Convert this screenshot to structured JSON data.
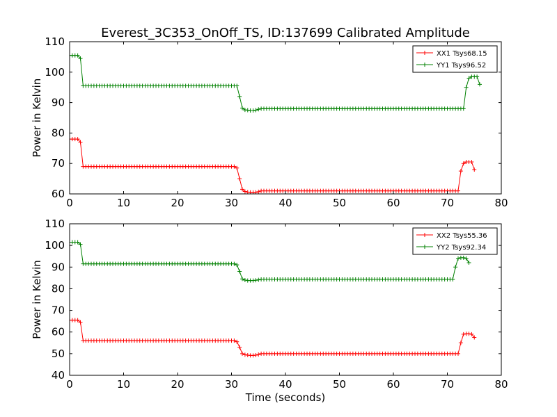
{
  "figure": {
    "title": "Everest_3C353_OnOff_TS, ID:137699 Calibrated Amplitude"
  },
  "chart_data": [
    {
      "type": "line",
      "title": "Everest_3C353_OnOff_TS, ID:137699 Calibrated Amplitude",
      "xlabel": "",
      "ylabel": "Power in Kelvin",
      "xlim": [
        0,
        80
      ],
      "ylim": [
        60,
        110
      ],
      "xticks": [
        0,
        10,
        20,
        30,
        40,
        50,
        60,
        70,
        80
      ],
      "yticks": [
        60,
        70,
        80,
        90,
        100,
        110
      ],
      "grid": false,
      "legend_position": "upper right",
      "series": [
        {
          "name": "XX1 Tsys68.15",
          "color": "#ff0000",
          "marker": "+",
          "x_start": 0,
          "x_step": 0.5,
          "values": [
            78,
            78,
            78,
            78,
            77,
            69,
            69,
            69,
            69,
            69,
            69,
            69,
            69,
            69,
            69,
            69,
            69,
            69,
            69,
            69,
            69,
            69,
            69,
            69,
            69,
            69,
            69,
            69,
            69,
            69,
            69,
            69,
            69,
            69,
            69,
            69,
            69,
            69,
            69,
            69,
            69,
            69,
            69,
            69,
            69,
            69,
            69,
            69,
            69,
            69,
            69,
            69,
            69,
            69,
            69,
            69,
            69,
            69,
            69,
            69,
            69,
            69,
            68.5,
            65,
            61.5,
            60.8,
            60.6,
            60.5,
            60.5,
            60.5,
            60.7,
            61,
            61,
            61,
            61,
            61,
            61,
            61,
            61,
            61,
            61,
            61,
            61,
            61,
            61,
            61,
            61,
            61,
            61,
            61,
            61,
            61,
            61,
            61,
            61,
            61,
            61,
            61,
            61,
            61,
            61,
            61,
            61,
            61,
            61,
            61,
            61,
            61,
            61,
            61,
            61,
            61,
            61,
            61,
            61,
            61,
            61,
            61,
            61,
            61,
            61,
            61,
            61,
            61,
            61,
            61,
            61,
            61,
            61,
            61,
            61,
            61,
            61,
            61,
            61,
            61,
            61,
            61,
            61,
            61,
            61,
            61,
            61,
            61,
            61,
            67.5,
            70,
            70.5,
            70.5,
            70.5,
            68
          ]
        },
        {
          "name": "YY1 Tsys96.52",
          "color": "#008000",
          "marker": "+",
          "x_start": 0,
          "x_step": 0.5,
          "values": [
            105.5,
            105.5,
            105.5,
            105.5,
            104.5,
            95.5,
            95.5,
            95.5,
            95.5,
            95.5,
            95.5,
            95.5,
            95.5,
            95.5,
            95.5,
            95.5,
            95.5,
            95.5,
            95.5,
            95.5,
            95.5,
            95.5,
            95.5,
            95.5,
            95.5,
            95.5,
            95.5,
            95.5,
            95.5,
            95.5,
            95.5,
            95.5,
            95.5,
            95.5,
            95.5,
            95.5,
            95.5,
            95.5,
            95.5,
            95.5,
            95.5,
            95.5,
            95.5,
            95.5,
            95.5,
            95.5,
            95.5,
            95.5,
            95.5,
            95.5,
            95.5,
            95.5,
            95.5,
            95.5,
            95.5,
            95.5,
            95.5,
            95.5,
            95.5,
            95.5,
            95.5,
            95.5,
            95.5,
            92,
            88.2,
            87.6,
            87.5,
            87.4,
            87.4,
            87.5,
            87.8,
            88,
            88,
            88,
            88,
            88,
            88,
            88,
            88,
            88,
            88,
            88,
            88,
            88,
            88,
            88,
            88,
            88,
            88,
            88,
            88,
            88,
            88,
            88,
            88,
            88,
            88,
            88,
            88,
            88,
            88,
            88,
            88,
            88,
            88,
            88,
            88,
            88,
            88,
            88,
            88,
            88,
            88,
            88,
            88,
            88,
            88,
            88,
            88,
            88,
            88,
            88,
            88,
            88,
            88,
            88,
            88,
            88,
            88,
            88,
            88,
            88,
            88,
            88,
            88,
            88,
            88,
            88,
            88,
            88,
            88,
            88,
            88,
            88,
            88,
            88,
            88,
            95,
            98,
            98.5,
            98.5,
            98.5,
            96
          ]
        }
      ]
    },
    {
      "type": "line",
      "title": "",
      "xlabel": "Time (seconds)",
      "ylabel": "Power in Kelvin",
      "xlim": [
        0,
        80
      ],
      "ylim": [
        40,
        110
      ],
      "xticks": [
        0,
        10,
        20,
        30,
        40,
        50,
        60,
        70,
        80
      ],
      "yticks": [
        40,
        50,
        60,
        70,
        80,
        90,
        100,
        110
      ],
      "grid": false,
      "legend_position": "upper right",
      "series": [
        {
          "name": "XX2 Tsys55.36",
          "color": "#ff0000",
          "marker": "+",
          "x_start": 0,
          "x_step": 0.5,
          "values": [
            65.5,
            65.5,
            65.5,
            65.5,
            64.5,
            56,
            56,
            56,
            56,
            56,
            56,
            56,
            56,
            56,
            56,
            56,
            56,
            56,
            56,
            56,
            56,
            56,
            56,
            56,
            56,
            56,
            56,
            56,
            56,
            56,
            56,
            56,
            56,
            56,
            56,
            56,
            56,
            56,
            56,
            56,
            56,
            56,
            56,
            56,
            56,
            56,
            56,
            56,
            56,
            56,
            56,
            56,
            56,
            56,
            56,
            56,
            56,
            56,
            56,
            56,
            56,
            56,
            55.5,
            53,
            50,
            49.5,
            49.3,
            49.2,
            49.2,
            49.3,
            49.6,
            50,
            50,
            50,
            50,
            50,
            50,
            50,
            50,
            50,
            50,
            50,
            50,
            50,
            50,
            50,
            50,
            50,
            50,
            50,
            50,
            50,
            50,
            50,
            50,
            50,
            50,
            50,
            50,
            50,
            50,
            50,
            50,
            50,
            50,
            50,
            50,
            50,
            50,
            50,
            50,
            50,
            50,
            50,
            50,
            50,
            50,
            50,
            50,
            50,
            50,
            50,
            50,
            50,
            50,
            50,
            50,
            50,
            50,
            50,
            50,
            50,
            50,
            50,
            50,
            50,
            50,
            50,
            50,
            50,
            50,
            50,
            50,
            50,
            50,
            55,
            59,
            59.2,
            59.2,
            59,
            57.5
          ]
        },
        {
          "name": "YY2 Tsys92.34",
          "color": "#008000",
          "marker": "+",
          "x_start": 0,
          "x_step": 0.5,
          "values": [
            101.5,
            101.5,
            101.5,
            101.5,
            100.5,
            91.5,
            91.5,
            91.5,
            91.5,
            91.5,
            91.5,
            91.5,
            91.5,
            91.5,
            91.5,
            91.5,
            91.5,
            91.5,
            91.5,
            91.5,
            91.5,
            91.5,
            91.5,
            91.5,
            91.5,
            91.5,
            91.5,
            91.5,
            91.5,
            91.5,
            91.5,
            91.5,
            91.5,
            91.5,
            91.5,
            91.5,
            91.5,
            91.5,
            91.5,
            91.5,
            91.5,
            91.5,
            91.5,
            91.5,
            91.5,
            91.5,
            91.5,
            91.5,
            91.5,
            91.5,
            91.5,
            91.5,
            91.5,
            91.5,
            91.5,
            91.5,
            91.5,
            91.5,
            91.5,
            91.5,
            91.5,
            91.5,
            91,
            88,
            84.5,
            84,
            83.8,
            83.8,
            83.8,
            83.9,
            84.1,
            84.3,
            84.3,
            84.3,
            84.3,
            84.3,
            84.3,
            84.3,
            84.3,
            84.3,
            84.3,
            84.3,
            84.3,
            84.3,
            84.3,
            84.3,
            84.3,
            84.3,
            84.3,
            84.3,
            84.3,
            84.3,
            84.3,
            84.3,
            84.3,
            84.3,
            84.3,
            84.3,
            84.3,
            84.3,
            84.3,
            84.3,
            84.3,
            84.3,
            84.3,
            84.3,
            84.3,
            84.3,
            84.3,
            84.3,
            84.3,
            84.3,
            84.3,
            84.3,
            84.3,
            84.3,
            84.3,
            84.3,
            84.3,
            84.3,
            84.3,
            84.3,
            84.3,
            84.3,
            84.3,
            84.3,
            84.3,
            84.3,
            84.3,
            84.3,
            84.3,
            84.3,
            84.3,
            84.3,
            84.3,
            84.3,
            84.3,
            84.3,
            84.3,
            84.3,
            84.3,
            84.3,
            84.3,
            90,
            94,
            94.3,
            94.3,
            94,
            92
          ]
        }
      ]
    }
  ]
}
